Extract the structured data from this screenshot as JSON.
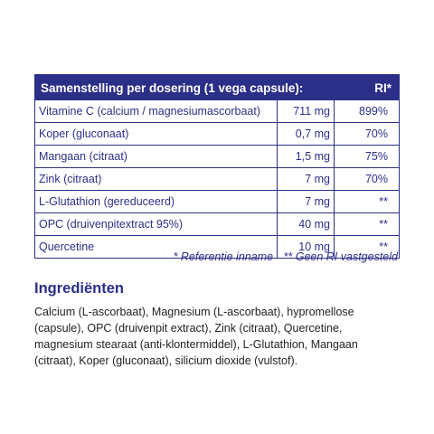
{
  "table": {
    "header": {
      "title": "Samenstelling per dosering (1 vega capsule):",
      "ri": "RI*"
    },
    "rows": [
      {
        "name": "Vitamine C (calcium / magnesiumascorbaat)",
        "amount": "711 mg",
        "ri": "899%"
      },
      {
        "name": "Koper (gluconaat)",
        "amount": "0,7 mg",
        "ri": "70%"
      },
      {
        "name": "Mangaan (citraat)",
        "amount": "1,5 mg",
        "ri": "75%"
      },
      {
        "name": "Zink (citraat)",
        "amount": "7 mg",
        "ri": "70%"
      },
      {
        "name": "L-Glutathion (gereduceerd)",
        "amount": "7 mg",
        "ri": "**"
      },
      {
        "name": "OPC (druivenpitextract 95%)",
        "amount": "40 mg",
        "ri": "**"
      },
      {
        "name": "Quercetine",
        "amount": "10 mg",
        "ri": "**"
      }
    ]
  },
  "footnote": {
    "reference": "* Referentie inname",
    "no_ri": "** Geen RI vastgesteld"
  },
  "ingredients": {
    "heading": "Ingrediënten",
    "lines": [
      "Calcium (L-ascorbaat), Magnesium (L-ascorbaat), hypromellose",
      "(capsule), OPC (druivenpit extract), Zink (citraat), Quercetine,",
      "magnesium stearaat (anti-klontermiddel), L-Glutathion, Mangaan",
      "(citraat), Koper (gluconaat), silicium dioxide (vulstof)."
    ]
  },
  "colors": {
    "accent": "#2b2f87",
    "body_text": "#222222"
  }
}
